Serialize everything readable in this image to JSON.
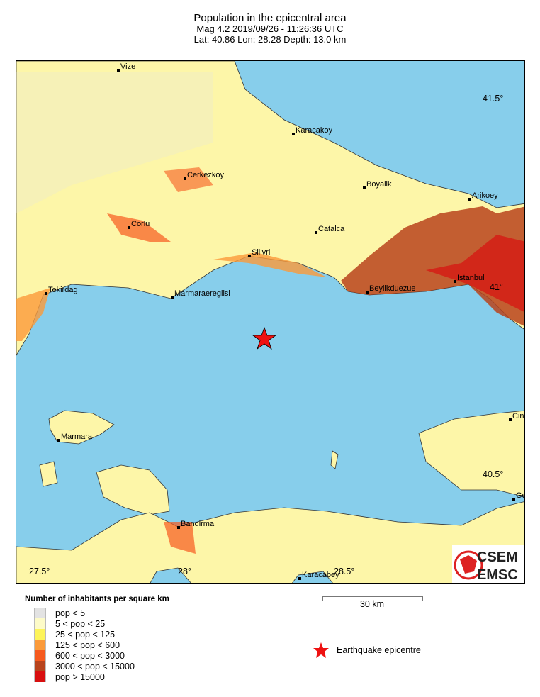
{
  "header": {
    "title": "Population in the epicentral area",
    "line2": "Mag 4.2  2019/09/26 - 11:26:36 UTC",
    "line3": "Lat: 40.86    Lon:  28.28     Depth:  13.0 km"
  },
  "map": {
    "sea_color": "#87ceeb",
    "land_color": "#fdf6a8",
    "lat_labels": [
      "41.5°",
      "41°",
      "40.5°"
    ],
    "lon_labels": [
      "27.5°",
      "28°",
      "28.5°"
    ],
    "cities": [
      "Vize",
      "Karacakoy",
      "Cerkezkoy",
      "Boyalik",
      "Arikoey",
      "Corlu",
      "Catalca",
      "Silivri",
      "Istanbul",
      "Tekirdag",
      "Beylikduezue",
      "Marmaraereglisi",
      "Marmara",
      "Bandirma",
      "Karacabey",
      "Cin",
      "Ge"
    ],
    "epicentre": {
      "lat": 40.86,
      "lon": 28.28,
      "color": "#ee1111",
      "icon": "star-icon"
    },
    "logo": {
      "line1": "CSEM",
      "line2": "EMSC"
    }
  },
  "legend": {
    "title": "Number of inhabitants per square km",
    "items": [
      {
        "label": "pop < 5",
        "color": "#e3e3e3"
      },
      {
        "label": "5 < pop < 25",
        "color": "#fdfbc8"
      },
      {
        "label": "25 < pop < 125",
        "color": "#fdf45a"
      },
      {
        "label": "125 < pop < 600",
        "color": "#fb9a3a"
      },
      {
        "label": "600 < pop < 3000",
        "color": "#f65a1e"
      },
      {
        "label": "3000 < pop < 15000",
        "color": "#b8431c"
      },
      {
        "label": "pop > 15000",
        "color": "#d80f0f"
      }
    ],
    "scale_label": "30 km",
    "epicentre_label": "Earthquake epicentre"
  }
}
